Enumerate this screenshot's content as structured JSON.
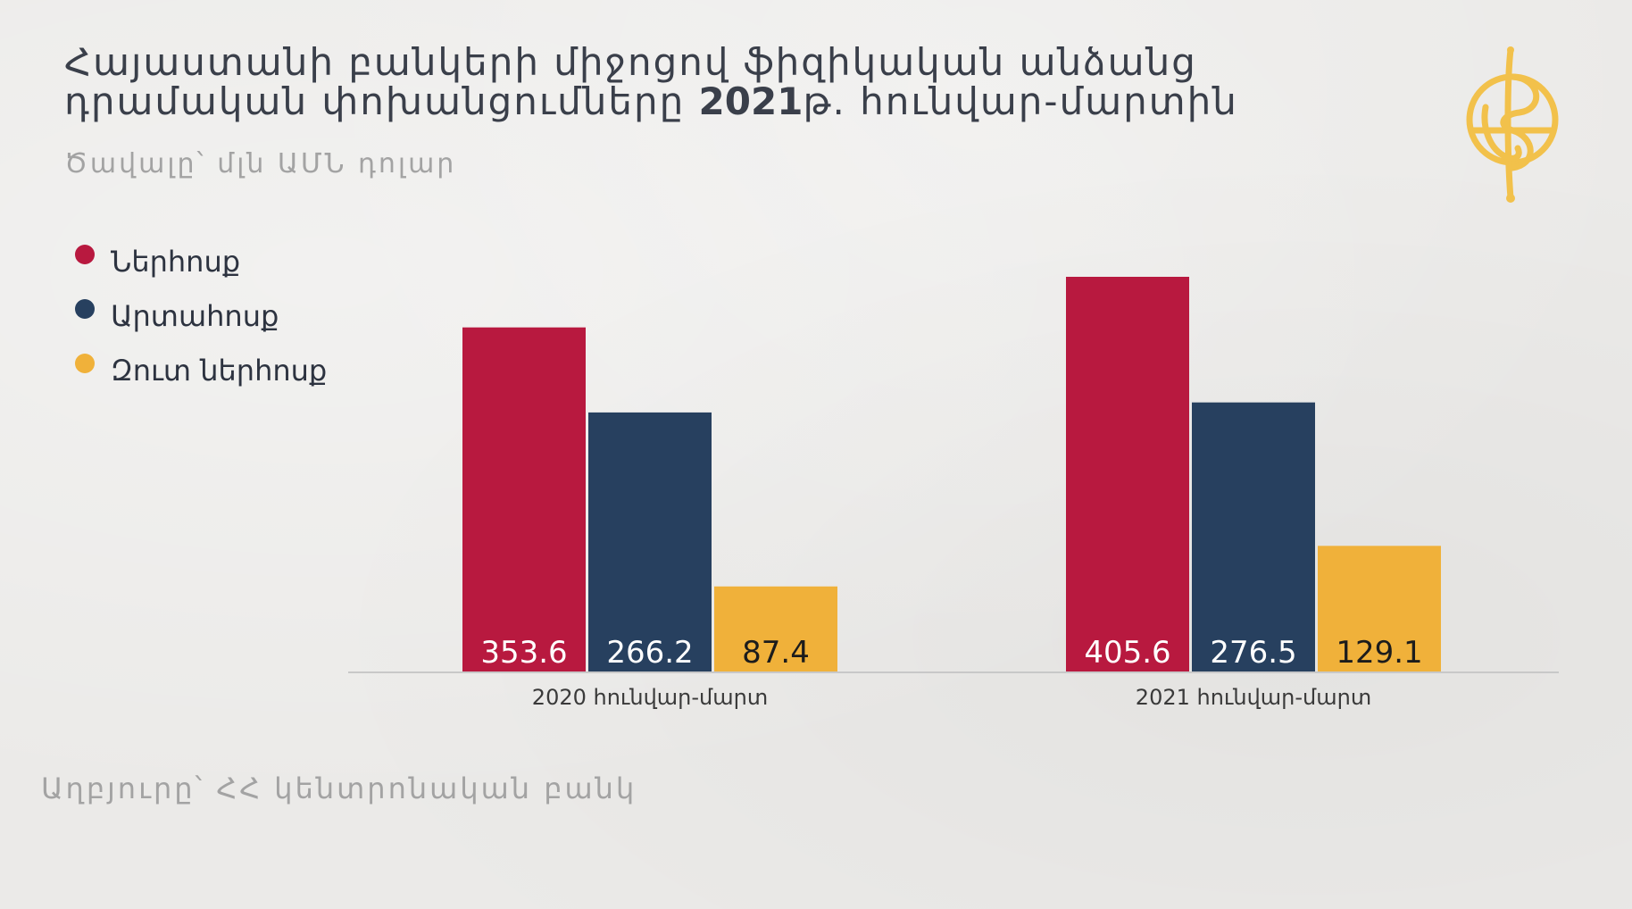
{
  "title": {
    "line1": "Հայաստանի բանկերի միջոցով ֆիզիկական անձանց",
    "line2_pre": "դրամական փոխանցումները ",
    "line2_bold": "2021",
    "line2_post": "թ. հունվար-մարտին"
  },
  "subtitle": "Ծավալը՝ մլն ԱՄՆ դոլար",
  "source": "Աղբյուրը՝ ՀՀ կենտրոնական բանկ",
  "logo": {
    "icon": "yellow-globe-logo-icon",
    "color": "#f2c14b"
  },
  "colors": {
    "inflow": "#b8193f",
    "outflow": "#27405f",
    "net": "#f0b13a",
    "label_light": "#ffffff",
    "label_dark": "#1c1c1c",
    "axis_text": "#3a3a3a"
  },
  "chart_data": {
    "type": "bar",
    "categories": [
      "2020 հունվար-մարտ",
      "2021 հունվար-մարտ"
    ],
    "series": [
      {
        "name": "Ներհոսք",
        "values": [
          353.6,
          405.6
        ],
        "color": "#b8193f"
      },
      {
        "name": "Արտահոսք",
        "values": [
          266.2,
          276.5
        ],
        "color": "#27405f"
      },
      {
        "name": "Զուտ ներհոսք",
        "values": [
          87.4,
          129.1
        ],
        "color": "#f0b13a"
      }
    ],
    "title": "Հայաստանի բանկերի միջոցով ֆիզիկական անձանց դրամական փոխանցումները 2021թ. հունվար-մարտին",
    "ylabel": "Ծավալը՝ մլն ԱՄՆ դոլար",
    "ylim": [
      0,
      405.6
    ],
    "grid": false,
    "legend_position": "top-left"
  }
}
